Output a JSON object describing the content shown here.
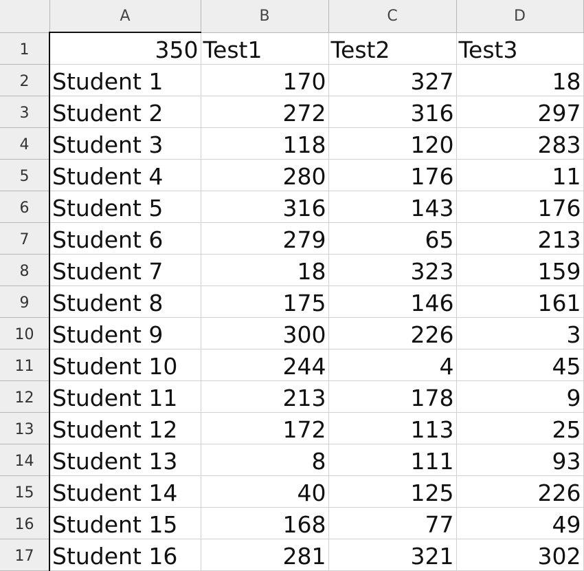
{
  "sheet": {
    "columns": [
      "A",
      "B",
      "C",
      "D"
    ],
    "rows": [
      {
        "num": "1",
        "cells": [
          "350",
          "Test1",
          "Test2",
          "Test3"
        ]
      },
      {
        "num": "2",
        "cells": [
          "Student 1",
          "170",
          "327",
          "18"
        ]
      },
      {
        "num": "3",
        "cells": [
          "Student 2",
          "272",
          "316",
          "297"
        ]
      },
      {
        "num": "4",
        "cells": [
          "Student 3",
          "118",
          "120",
          "283"
        ]
      },
      {
        "num": "5",
        "cells": [
          "Student 4",
          "280",
          "176",
          "11"
        ]
      },
      {
        "num": "6",
        "cells": [
          "Student 5",
          "316",
          "143",
          "176"
        ]
      },
      {
        "num": "7",
        "cells": [
          "Student 6",
          "279",
          "65",
          "213"
        ]
      },
      {
        "num": "8",
        "cells": [
          "Student 7",
          "18",
          "323",
          "159"
        ]
      },
      {
        "num": "9",
        "cells": [
          "Student 8",
          "175",
          "146",
          "161"
        ]
      },
      {
        "num": "10",
        "cells": [
          "Student 9",
          "300",
          "226",
          "3"
        ]
      },
      {
        "num": "11",
        "cells": [
          "Student 10",
          "244",
          "4",
          "45"
        ]
      },
      {
        "num": "12",
        "cells": [
          "Student 11",
          "213",
          "178",
          "9"
        ]
      },
      {
        "num": "13",
        "cells": [
          "Student 12",
          "172",
          "113",
          "25"
        ]
      },
      {
        "num": "14",
        "cells": [
          "Student 13",
          "8",
          "111",
          "93"
        ]
      },
      {
        "num": "15",
        "cells": [
          "Student 14",
          "40",
          "125",
          "226"
        ]
      },
      {
        "num": "16",
        "cells": [
          "Student 15",
          "168",
          "77",
          "49"
        ]
      },
      {
        "num": "17",
        "cells": [
          "Student 16",
          "281",
          "321",
          "302"
        ]
      }
    ]
  }
}
